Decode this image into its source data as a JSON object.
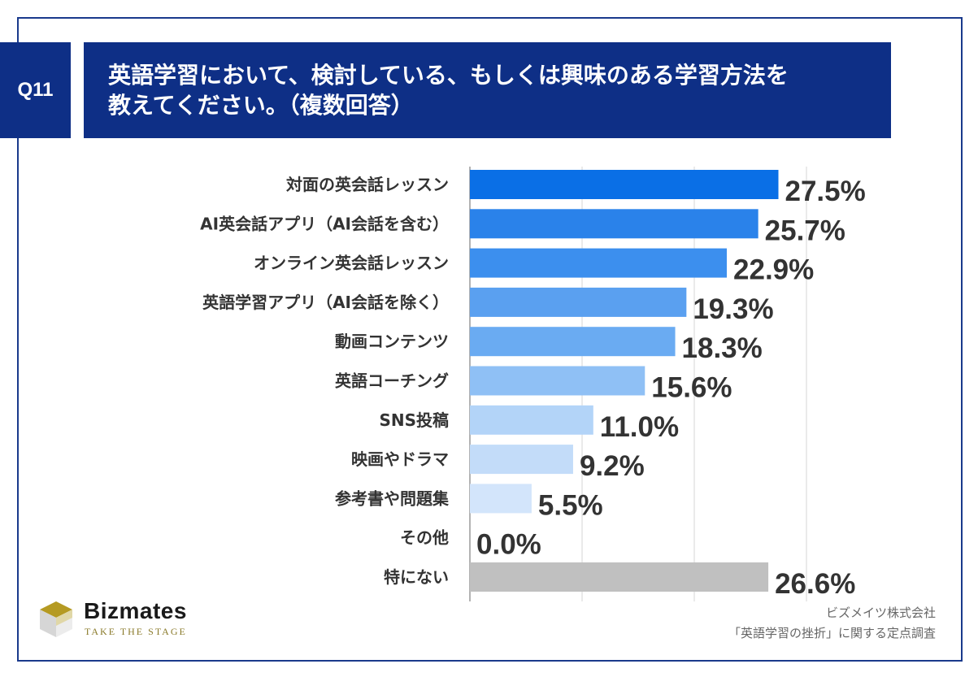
{
  "header": {
    "question_number": "Q11",
    "title": "英語学習において、検討している、もしくは興味のある学習方法を\n教えてください。（複数回答）"
  },
  "brand": {
    "name": "Bizmates",
    "tagline": "TAKE THE STAGE",
    "colors": {
      "gold": "#b59a22",
      "light_gold": "#d9c97a",
      "grey": "#c9c9c9",
      "light_grey": "#e6e6e6"
    }
  },
  "source": {
    "company": "ビズメイツ株式会社",
    "survey": "「英語学習の挫折」に関する定点調査"
  },
  "chart_data": {
    "type": "bar",
    "orientation": "horizontal",
    "categories": [
      "対面の英会話レッスン",
      "AI英会話アプリ（AI会話を含む）",
      "オンライン英会話レッスン",
      "英語学習アプリ（AI会話を除く）",
      "動画コンテンツ",
      "英語コーチング",
      "SNS投稿",
      "映画やドラマ",
      "参考書や問題集",
      "その他",
      "特にない"
    ],
    "values": [
      27.5,
      25.7,
      22.9,
      19.3,
      18.3,
      15.6,
      11.0,
      9.2,
      5.5,
      0.0,
      26.6
    ],
    "value_labels": [
      "27.5%",
      "25.7%",
      "22.9%",
      "19.3%",
      "18.3%",
      "15.6%",
      "11.0%",
      "9.2%",
      "5.5%",
      "0.0%",
      "26.6%"
    ],
    "bar_colors": [
      "#0a6fe6",
      "#2a82ea",
      "#3c8fee",
      "#5aa0f0",
      "#6aabf2",
      "#8fc0f5",
      "#b3d4f8",
      "#c3dcf9",
      "#d3e5fb",
      "#e0ecfc",
      "#c0c0c0"
    ],
    "xlim": [
      0,
      30
    ],
    "grid_values": [
      0,
      10,
      20,
      30
    ],
    "grid": true,
    "legend": "none"
  }
}
